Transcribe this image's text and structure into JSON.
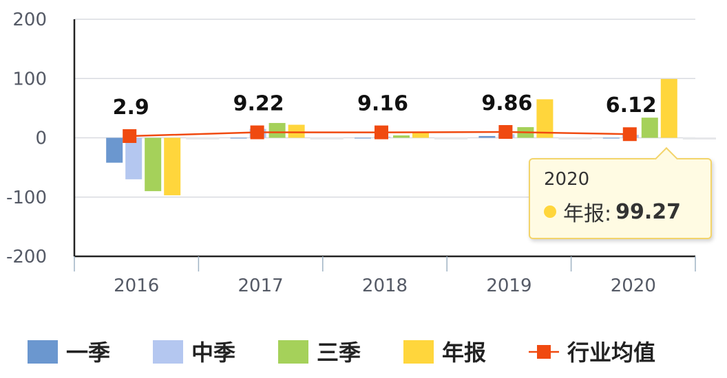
{
  "chart_data": {
    "type": "bar",
    "categories": [
      "2016",
      "2017",
      "2018",
      "2019",
      "2020"
    ],
    "ylim": [
      -200,
      200
    ],
    "yticks": [
      "200",
      "100",
      "0",
      "-100",
      "-200"
    ],
    "series": [
      {
        "name": "一季",
        "color": "#6b97cf",
        "values": [
          -42,
          0,
          -1,
          3,
          0
        ]
      },
      {
        "name": "中季",
        "color": "#b4c7f0",
        "values": [
          -70,
          15,
          2,
          6,
          5
        ]
      },
      {
        "name": "三季",
        "color": "#a5d15a",
        "values": [
          -90,
          25,
          4,
          18,
          34
        ]
      },
      {
        "name": "年报",
        "color": "#ffd63c",
        "values": [
          -97,
          22,
          10,
          65,
          99.27
        ]
      }
    ],
    "line_series": {
      "name": "行业均值",
      "color": "#f04a10",
      "values": [
        2.9,
        9.22,
        9.16,
        9.86,
        6.12
      ],
      "labels": [
        "2.9",
        "9.22",
        "9.16",
        "9.86",
        "6.12"
      ]
    },
    "grid": true,
    "legend_position": "bottom"
  },
  "tooltip": {
    "title": "2020",
    "series_label": "年报:",
    "value": "99.27"
  }
}
